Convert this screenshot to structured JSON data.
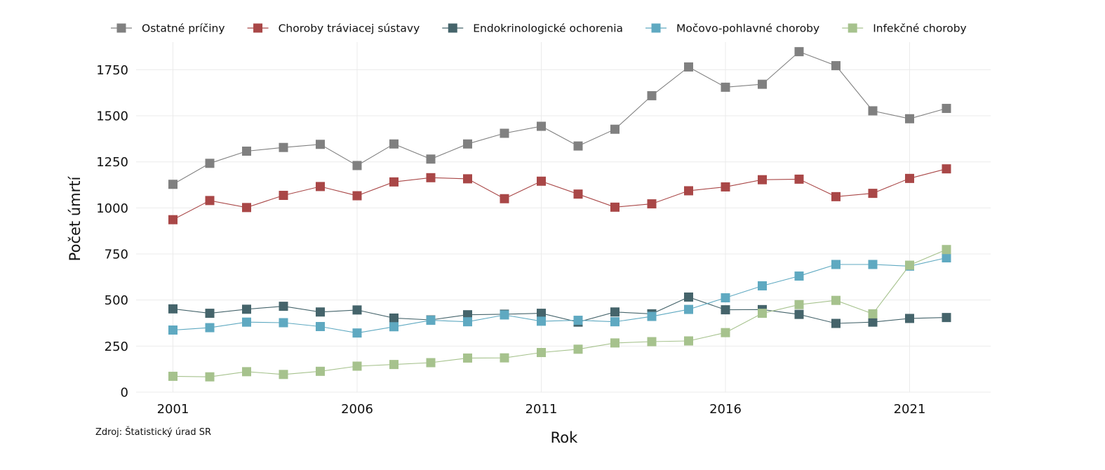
{
  "chart_data": {
    "type": "line",
    "title": "",
    "xlabel": "Rok",
    "ylabel": "Počet úmrtí",
    "source": "Zdroj: Štatistický úrad SR",
    "x": [
      2001,
      2002,
      2003,
      2004,
      2005,
      2006,
      2007,
      2008,
      2009,
      2010,
      2011,
      2012,
      2013,
      2014,
      2015,
      2016,
      2017,
      2018,
      2019,
      2020,
      2021,
      2022
    ],
    "x_ticks": [
      "2001",
      "2006",
      "2011",
      "2016",
      "2021"
    ],
    "y_ticks": [
      "0",
      "250",
      "500",
      "750",
      "1000",
      "1250",
      "1500",
      "1750"
    ],
    "xlim": [
      2000,
      2023.2
    ],
    "ylim": [
      0,
      1900
    ],
    "grid": true,
    "legend_position": "top",
    "series": [
      {
        "name": "Ostatné príčiny",
        "color": "#808080",
        "values": [
          1128,
          1242,
          1308,
          1328,
          1345,
          1230,
          1347,
          1265,
          1347,
          1405,
          1443,
          1336,
          1427,
          1609,
          1765,
          1655,
          1671,
          1848,
          1772,
          1527,
          1484,
          1540
        ]
      },
      {
        "name": "Choroby tráviacej sústavy",
        "color": "#a94747",
        "values": [
          936,
          1040,
          1002,
          1068,
          1116,
          1066,
          1141,
          1164,
          1158,
          1050,
          1145,
          1075,
          1004,
          1022,
          1093,
          1114,
          1153,
          1156,
          1061,
          1079,
          1160,
          1212
        ]
      },
      {
        "name": "Endokrinologické ochorenia",
        "color": "#45646b",
        "values": [
          452,
          428,
          450,
          466,
          435,
          446,
          402,
          392,
          420,
          423,
          428,
          380,
          435,
          425,
          516,
          447,
          448,
          422,
          373,
          380,
          400,
          405
        ]
      },
      {
        "name": "Močovo-pohlavné choroby",
        "color": "#5fa9c1",
        "values": [
          337,
          350,
          380,
          377,
          356,
          321,
          355,
          390,
          382,
          419,
          385,
          390,
          382,
          411,
          449,
          512,
          577,
          630,
          693,
          693,
          684,
          729
        ]
      },
      {
        "name": "Infekčné choroby",
        "color": "#a6c28d",
        "values": [
          86,
          83,
          111,
          96,
          113,
          141,
          150,
          160,
          185,
          186,
          215,
          233,
          267,
          274,
          278,
          323,
          428,
          475,
          498,
          425,
          689,
          774
        ]
      }
    ]
  }
}
